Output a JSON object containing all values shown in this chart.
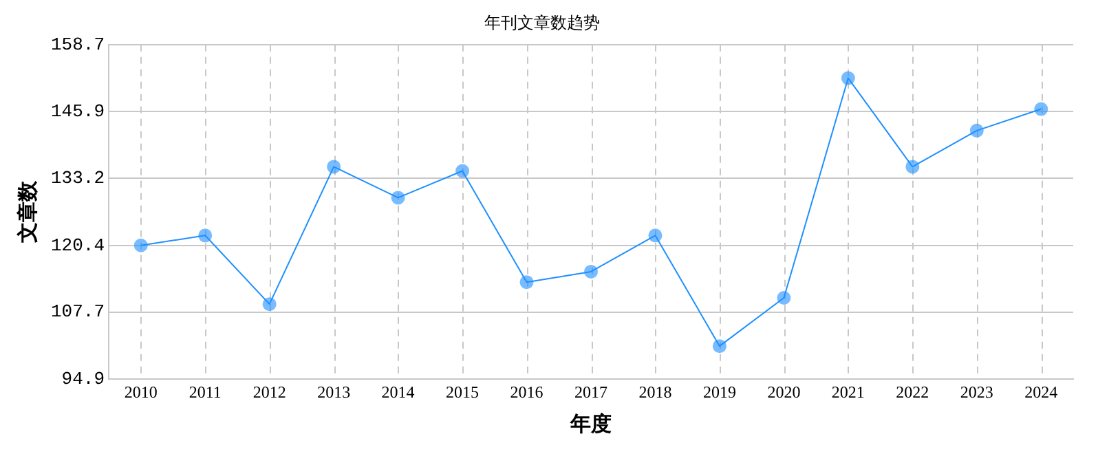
{
  "chart_data": {
    "type": "line",
    "title": "年刊文章数趋势",
    "xlabel": "年度",
    "ylabel": "文章数",
    "categories": [
      "2010",
      "2011",
      "2012",
      "2013",
      "2014",
      "2015",
      "2016",
      "2017",
      "2018",
      "2019",
      "2020",
      "2021",
      "2022",
      "2023",
      "2024"
    ],
    "series": [
      {
        "color": "#1e90ff",
        "values": [
          120.4,
          122.3,
          109.2,
          135.4,
          129.5,
          134.6,
          113.4,
          115.4,
          122.3,
          101.2,
          110.4,
          152.3,
          135.4,
          142.3,
          146.4
        ]
      }
    ],
    "ylim": [
      94.9,
      158.7
    ],
    "yticks": [
      94.9,
      107.7,
      120.4,
      133.2,
      145.9,
      158.7
    ],
    "grid": true,
    "marker": "circle",
    "line_style": "solid",
    "legend": false
  }
}
